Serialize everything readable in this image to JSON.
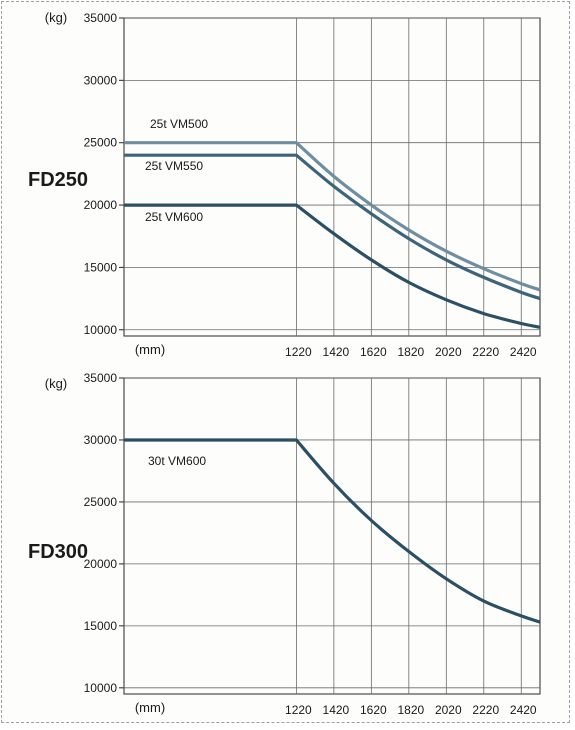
{
  "chart_data": [
    {
      "type": "line",
      "model_label": "FD250",
      "y_unit": "(kg)",
      "x_unit": "(mm)",
      "y_ticks": [
        10000,
        15000,
        20000,
        25000,
        30000,
        35000
      ],
      "x_ticks": [
        1220,
        1420,
        1620,
        1820,
        2020,
        2220,
        2420
      ],
      "xlim": [
        300,
        2520
      ],
      "ylim": [
        9500,
        35000
      ],
      "grid": true,
      "colors": {
        "light": "#6f8ea0",
        "medium": "#3d6479",
        "dark": "#2b4f64"
      },
      "series": [
        {
          "name": "25t VM500",
          "color": "#6f8ea0",
          "x": [
            300,
            1220,
            1420,
            1620,
            1820,
            2020,
            2220,
            2420,
            2520
          ],
          "y": [
            25000,
            25000,
            22300,
            20000,
            18000,
            16300,
            14900,
            13700,
            13200
          ]
        },
        {
          "name": "25t VM550",
          "color": "#3d6479",
          "x": [
            300,
            1220,
            1420,
            1620,
            1820,
            2020,
            2220,
            2420,
            2520
          ],
          "y": [
            24000,
            24000,
            21500,
            19300,
            17300,
            15600,
            14200,
            13000,
            12500
          ]
        },
        {
          "name": "25t VM600",
          "color": "#2b4f64",
          "x": [
            300,
            1220,
            1420,
            1620,
            1820,
            2020,
            2220,
            2420,
            2520
          ],
          "y": [
            20000,
            20000,
            17700,
            15600,
            13800,
            12400,
            11300,
            10500,
            10200
          ]
        }
      ]
    },
    {
      "type": "line",
      "model_label": "FD300",
      "y_unit": "(kg)",
      "x_unit": "(mm)",
      "y_ticks": [
        10000,
        15000,
        20000,
        25000,
        30000,
        35000
      ],
      "x_ticks": [
        1220,
        1420,
        1620,
        1820,
        2020,
        2220,
        2420
      ],
      "xlim": [
        300,
        2520
      ],
      "ylim": [
        9500,
        35000
      ],
      "grid": true,
      "colors": {
        "dark": "#2b4f64"
      },
      "series": [
        {
          "name": "30t VM600",
          "color": "#2b4f64",
          "x": [
            300,
            1220,
            1420,
            1620,
            1820,
            2020,
            2220,
            2420,
            2520
          ],
          "y": [
            30000,
            30000,
            26500,
            23500,
            21000,
            18800,
            17000,
            15800,
            15300
          ]
        }
      ]
    }
  ]
}
